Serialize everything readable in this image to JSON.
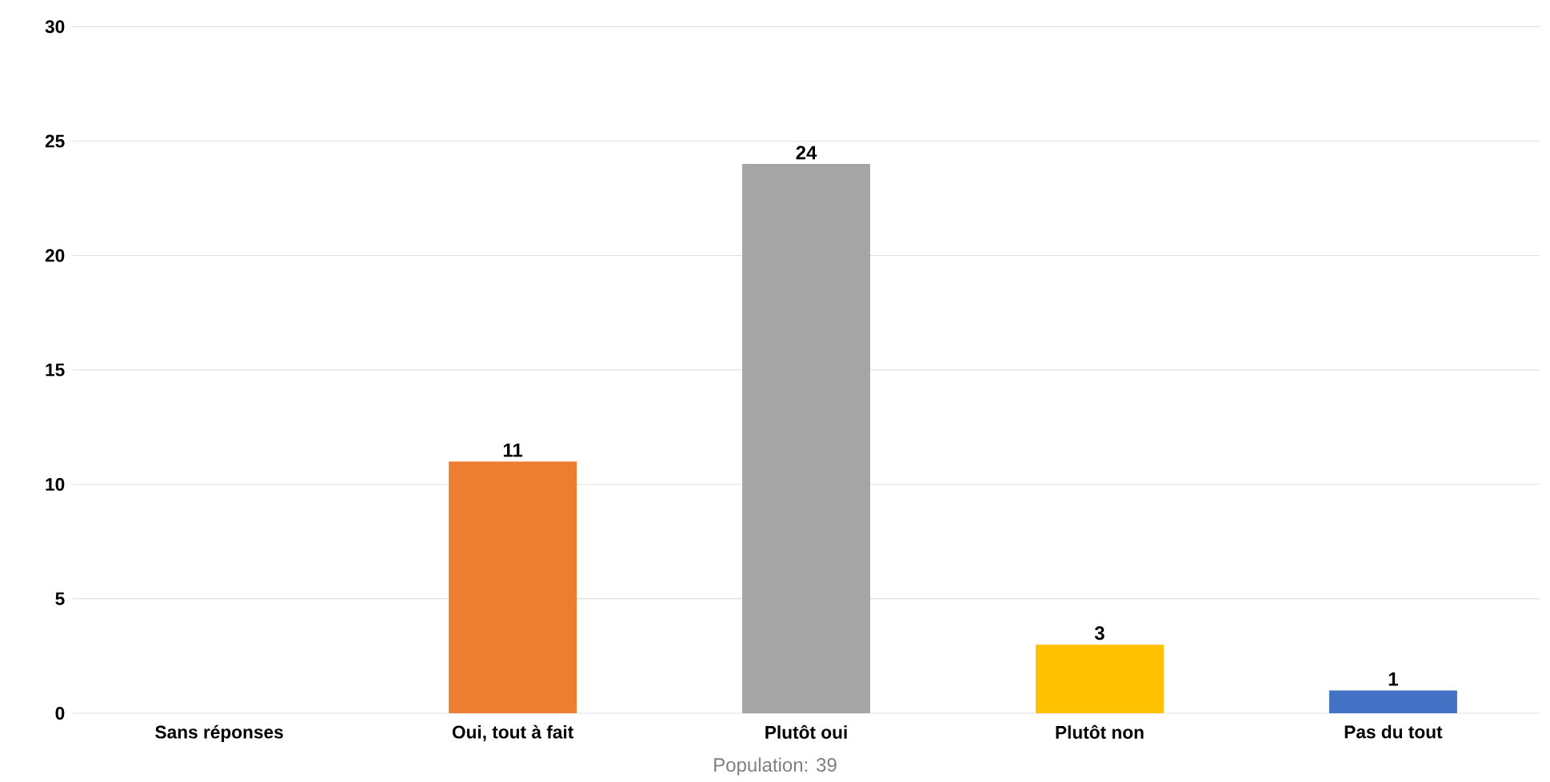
{
  "chart_data": {
    "type": "bar",
    "categories": [
      "Sans réponses",
      "Oui, tout à fait",
      "Plutôt oui",
      "Plutôt non",
      "Pas du tout"
    ],
    "values": [
      0,
      11,
      24,
      3,
      1
    ],
    "value_labels": [
      null,
      "11",
      "24",
      "3",
      "1"
    ],
    "colors": [
      "#4472c4",
      "#ed7d31",
      "#a5a5a5",
      "#ffc000",
      "#4472c4"
    ],
    "ylim": [
      0,
      30
    ],
    "yticks": [
      0,
      5,
      10,
      15,
      20,
      25,
      30
    ],
    "grid": "y",
    "annotations": [
      "Population: 39"
    ]
  }
}
